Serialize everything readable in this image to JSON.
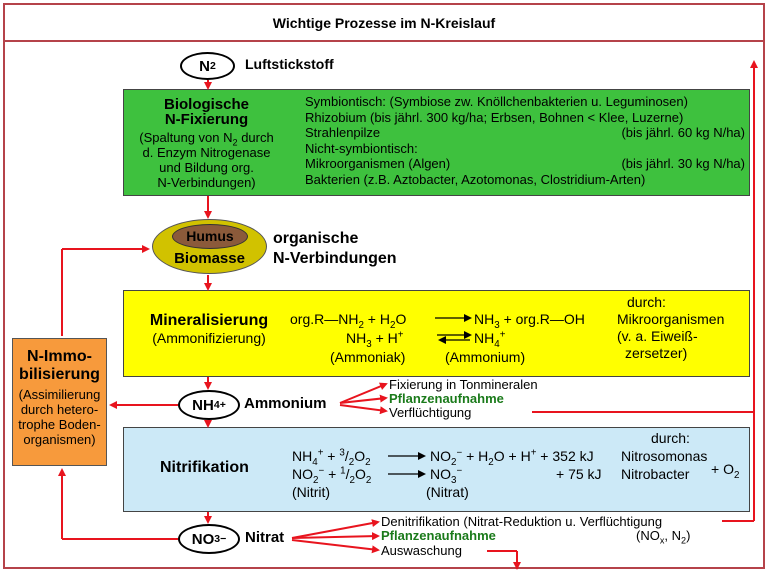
{
  "title": "Wichtige Prozesse im N-Kreislauf",
  "n2": {
    "label": "N",
    "sub": "2",
    "name": "Luftstickstoff"
  },
  "fixation": {
    "heading1": "Biologische",
    "heading2": "N-Fixierung",
    "desc1": "(Spaltung von N",
    "desc1_sub": "2",
    "desc1_end": " durch",
    "desc2": "d. Enzym Nitrogenase",
    "desc3": "und Bildung org.",
    "desc4": "N-Verbindungen)",
    "lines": [
      {
        "left": "Symbiontisch: (Symbiose zw. Knöllchenbakterien u. Leguminosen)",
        "right": ""
      },
      {
        "left": "Rhizobium  (bis jährl. 300 kg/ha; Erbsen, Bohnen < Klee, Luzerne)",
        "right": ""
      },
      {
        "left": "Strahlenpilze",
        "right": "(bis jährl. 60 kg N/ha)"
      },
      {
        "left": "Nicht-symbiontisch:",
        "right": ""
      },
      {
        "left": "Mikroorganismen (Algen)",
        "right": "(bis jährl. 30 kg N/ha)"
      },
      {
        "left": "Bakterien (z.B. Aztobacter, Azotomonas, Clostridium-Arten)",
        "right": ""
      }
    ]
  },
  "humus": {
    "inner": "Humus",
    "outer": "Biomasse",
    "label1": "organische",
    "label2": "N-Verbindungen"
  },
  "mineral": {
    "heading": "Mineralisierung",
    "sub": "(Ammonifizierung)",
    "eq1_a": "org.R—NH",
    "eq1_a_sub": "2",
    "eq1_b": " + H",
    "eq1_b_sub": "2",
    "eq1_c": "O",
    "eq1_d": "NH",
    "eq1_d_sub": "3",
    "eq1_e": " + org.R—OH",
    "eq2_a": "NH",
    "eq2_a_sub": "3",
    "eq2_b": " + H",
    "eq2_b_sup": "+",
    "eq2_c": "NH",
    "eq2_c_sub": "4",
    "eq2_c_sup": "+",
    "lbl_ammoniak": "(Ammoniak)",
    "lbl_ammonium": "(Ammonium)",
    "by1": "durch:",
    "by2": "Mikroorganismen",
    "by3": "(v. a. Eiweiß-",
    "by4": "zersetzer)"
  },
  "immob": {
    "h1": "N-Immo-",
    "h2": "bilisierung",
    "d1": "(Assimilierung",
    "d2": "durch hetero-",
    "d3": "trophe Boden-",
    "d4": "organismen)"
  },
  "nh4": {
    "label": "NH",
    "sub": "4",
    "sup": "+",
    "name": "Ammonium",
    "fates": [
      "Fixierung in Tonmineralen",
      "Pflanzenaufnahme",
      "Verflüchtigung"
    ]
  },
  "nitri": {
    "heading": "Nitrifikation",
    "r1_a": "NH",
    "r1_a_sub": "4",
    "r1_a_sup": "+",
    "r1_b": " + ",
    "r1_b_frac_sup": "3",
    "r1_b_frac_sub": "2",
    "r1_b_o": "O",
    "r1_b_o_sub": "2",
    "r1_c": "NO",
    "r1_c_sub": "2",
    "r1_c_sup": "−",
    "r1_d": " + H",
    "r1_d_sub": "2",
    "r1_d2": "O + H",
    "r1_d_sup": "+",
    "r1_e": " + 352 kJ",
    "r2_a": "NO",
    "r2_a_sub": "2",
    "r2_a_sup": "−",
    "r2_b": " + ",
    "r2_b_frac_sup": "1",
    "r2_b_frac_sub": "2",
    "r2_b_o": "O",
    "r2_b_o_sub": "2",
    "r2_c": "NO",
    "r2_c_sub": "3",
    "r2_c_sup": "−",
    "r2_e": "+   75 kJ",
    "lbl_nitrit": "(Nitrit)",
    "lbl_nitrat": "(Nitrat)",
    "by": "durch:",
    "org1": "Nitrosomonas",
    "org2": "Nitrobacter",
    "o2": "+ O",
    "o2_sub": "2"
  },
  "no3": {
    "label": "NO",
    "sub": "3",
    "sup": "−",
    "name": "Nitrat",
    "fates": [
      "Denitrifikation (Nitrat-Reduktion u. Verflüchtigung",
      "Pflanzenaufnahme",
      "Auswaschung"
    ],
    "gases": "(NO",
    "gases_sub": "x",
    "gases_end": ", N",
    "gases_sub2": "2",
    "gases_close": ")"
  },
  "colors": {
    "frame": "#b5434a",
    "arrow": "#e8141e",
    "fix": "#3ec13e",
    "mineral": "#ffff00",
    "nitri": "#cce9f7",
    "immob": "#f79a3c",
    "humus_outer": "#d1c200",
    "humus_inner": "#8b5a3a",
    "plant": "#1a7a1a"
  }
}
